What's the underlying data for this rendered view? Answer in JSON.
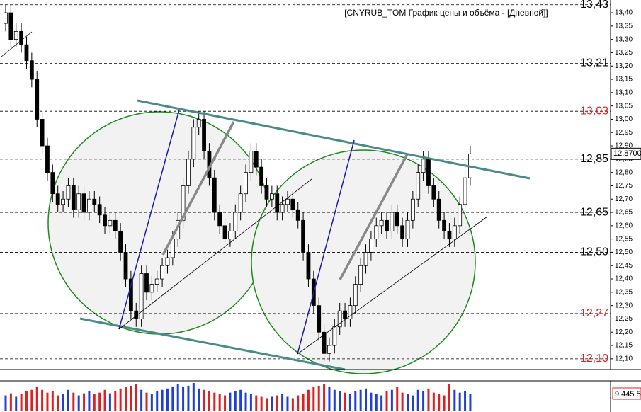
{
  "chart_data": {
    "type": "candlestick",
    "title": "[CNYRUB_TOM График цены и объёма - [Дневной]]",
    "up_color": "#ffffff",
    "down_color": "#000000",
    "volume_up_color": "#1f3fd8",
    "volume_down_color": "#e02020",
    "ylim": [
      12.065,
      13.448
    ],
    "yticks": [
      {
        "value": 13.4,
        "label": "13,40"
      },
      {
        "value": 13.35,
        "label": "13,35"
      },
      {
        "value": 13.3,
        "label": "13,30"
      },
      {
        "value": 13.25,
        "label": "13,25"
      },
      {
        "value": 13.2,
        "label": "13,20"
      },
      {
        "value": 13.15,
        "label": "13,15"
      },
      {
        "value": 13.1,
        "label": "13,10"
      },
      {
        "value": 13.05,
        "label": "13,05"
      },
      {
        "value": 13.0,
        "label": "13,00"
      },
      {
        "value": 12.95,
        "label": "12,95"
      },
      {
        "value": 12.9,
        "label": "12,90"
      },
      {
        "value": 12.85,
        "label": "12,85"
      },
      {
        "value": 12.8,
        "label": "12,80"
      },
      {
        "value": 12.75,
        "label": "12,75"
      },
      {
        "value": 12.7,
        "label": "12,70"
      },
      {
        "value": 12.65,
        "label": "12,65"
      },
      {
        "value": 12.6,
        "label": "12,60"
      },
      {
        "value": 12.55,
        "label": "12,55"
      },
      {
        "value": 12.5,
        "label": "12,50"
      },
      {
        "value": 12.45,
        "label": "12,45"
      },
      {
        "value": 12.4,
        "label": "12,40"
      },
      {
        "value": 12.35,
        "label": "12,35"
      },
      {
        "value": 12.3,
        "label": "12,30"
      },
      {
        "value": 12.25,
        "label": "12,25"
      },
      {
        "value": 12.2,
        "label": "12,20"
      },
      {
        "value": 12.15,
        "label": "12,15"
      },
      {
        "value": 12.1,
        "label": "12,10"
      }
    ],
    "levels": [
      {
        "value": 13.43,
        "label": "13,43",
        "color": "#000000"
      },
      {
        "value": 13.21,
        "label": "13,21",
        "color": "#000000"
      },
      {
        "value": 13.03,
        "label": "13,03",
        "color": "#e02020"
      },
      {
        "value": 12.85,
        "label": "12,85",
        "color": "#000000"
      },
      {
        "value": 12.65,
        "label": "12,65",
        "color": "#000000"
      },
      {
        "value": 12.5,
        "label": "12,50",
        "color": "#000000"
      },
      {
        "value": 12.27,
        "label": "12,27",
        "color": "#e02020"
      },
      {
        "value": 12.1,
        "label": "12,10",
        "color": "#e02020"
      }
    ],
    "last_price": {
      "value": 12.87,
      "label": "12,8700"
    },
    "open": [
      13.36,
      13.4,
      13.3,
      13.33,
      13.28,
      13.22,
      13.15,
      13.0,
      12.9,
      12.8,
      12.72,
      12.68,
      12.7,
      12.75,
      12.66,
      12.72,
      12.65,
      12.7,
      12.68,
      12.64,
      12.6,
      12.62,
      12.58,
      12.5,
      12.4,
      12.28,
      12.25,
      12.42,
      12.35,
      12.38,
      12.4,
      12.45,
      12.48,
      12.55,
      12.62,
      12.75,
      12.85,
      12.97,
      13.0,
      12.88,
      12.78,
      12.65,
      12.6,
      12.55,
      12.58,
      12.65,
      12.72,
      12.8,
      12.88,
      12.82,
      12.75,
      12.7,
      12.72,
      12.65,
      12.68,
      12.7,
      12.66,
      12.62,
      12.5,
      12.4,
      12.3,
      12.2,
      12.12,
      12.15,
      12.22,
      12.28,
      12.25,
      12.3,
      12.38,
      12.45,
      12.5,
      12.55,
      12.6,
      12.62,
      12.58,
      12.65,
      12.6,
      12.55,
      12.62,
      12.7,
      12.8,
      12.85,
      12.75,
      12.7,
      12.62,
      12.58,
      12.55,
      12.6,
      12.68,
      12.78
    ],
    "high": [
      13.43,
      13.43,
      13.36,
      13.36,
      13.31,
      13.25,
      13.18,
      13.03,
      12.93,
      12.83,
      12.75,
      12.73,
      12.78,
      12.78,
      12.75,
      12.75,
      12.73,
      12.73,
      12.71,
      12.67,
      12.65,
      12.65,
      12.61,
      12.53,
      12.43,
      12.31,
      12.45,
      12.45,
      12.41,
      12.43,
      12.48,
      12.51,
      12.58,
      12.65,
      12.78,
      12.88,
      13.0,
      13.03,
      13.03,
      12.91,
      12.81,
      12.68,
      12.63,
      12.61,
      12.68,
      12.75,
      12.83,
      12.91,
      12.91,
      12.85,
      12.78,
      12.75,
      12.75,
      12.71,
      12.73,
      12.73,
      12.69,
      12.65,
      12.53,
      12.43,
      12.33,
      12.23,
      12.18,
      12.25,
      12.31,
      12.31,
      12.33,
      12.41,
      12.48,
      12.53,
      12.58,
      12.63,
      12.65,
      12.65,
      12.68,
      12.68,
      12.63,
      12.65,
      12.73,
      12.83,
      12.88,
      12.88,
      12.78,
      12.73,
      12.65,
      12.61,
      12.63,
      12.71,
      12.81,
      12.9
    ],
    "low": [
      13.33,
      13.27,
      13.27,
      13.25,
      13.19,
      13.12,
      12.97,
      12.87,
      12.77,
      12.69,
      12.65,
      12.65,
      12.67,
      12.63,
      12.63,
      12.62,
      12.62,
      12.65,
      12.61,
      12.57,
      12.57,
      12.55,
      12.47,
      12.37,
      12.25,
      12.22,
      12.22,
      12.32,
      12.32,
      12.35,
      12.37,
      12.42,
      12.45,
      12.52,
      12.59,
      12.72,
      12.82,
      12.94,
      12.85,
      12.75,
      12.62,
      12.57,
      12.52,
      12.52,
      12.55,
      12.62,
      12.69,
      12.77,
      12.79,
      12.72,
      12.67,
      12.67,
      12.62,
      12.62,
      12.65,
      12.63,
      12.59,
      12.47,
      12.37,
      12.27,
      12.17,
      12.09,
      12.09,
      12.12,
      12.19,
      12.22,
      12.22,
      12.27,
      12.35,
      12.42,
      12.47,
      12.52,
      12.57,
      12.55,
      12.55,
      12.57,
      12.52,
      12.52,
      12.59,
      12.67,
      12.77,
      12.72,
      12.67,
      12.59,
      12.55,
      12.52,
      12.52,
      12.57,
      12.65,
      12.75
    ],
    "close": [
      13.4,
      13.3,
      13.33,
      13.28,
      13.22,
      13.15,
      13.0,
      12.9,
      12.8,
      12.72,
      12.68,
      12.7,
      12.75,
      12.66,
      12.72,
      12.65,
      12.7,
      12.68,
      12.64,
      12.6,
      12.62,
      12.58,
      12.5,
      12.4,
      12.28,
      12.25,
      12.42,
      12.35,
      12.38,
      12.4,
      12.45,
      12.48,
      12.55,
      12.62,
      12.75,
      12.85,
      12.97,
      13.0,
      12.88,
      12.78,
      12.65,
      12.6,
      12.55,
      12.58,
      12.65,
      12.72,
      12.8,
      12.88,
      12.82,
      12.75,
      12.7,
      12.72,
      12.65,
      12.68,
      12.7,
      12.66,
      12.62,
      12.5,
      12.4,
      12.3,
      12.2,
      12.12,
      12.15,
      12.22,
      12.28,
      12.25,
      12.3,
      12.38,
      12.45,
      12.5,
      12.55,
      12.6,
      12.62,
      12.58,
      12.65,
      12.6,
      12.55,
      12.62,
      12.7,
      12.8,
      12.85,
      12.75,
      12.7,
      12.62,
      12.58,
      12.55,
      12.6,
      12.68,
      12.78,
      12.87
    ],
    "volume_lim": [
      0,
      40
    ],
    "volume": [
      22,
      25,
      20,
      24,
      28,
      30,
      35,
      30,
      26,
      28,
      22,
      24,
      30,
      26,
      22,
      25,
      28,
      24,
      26,
      30,
      25,
      28,
      32,
      34,
      36,
      38,
      30,
      26,
      24,
      28,
      30,
      32,
      35,
      38,
      34,
      36,
      40,
      32,
      30,
      28,
      26,
      24,
      22,
      26,
      28,
      30,
      26,
      24,
      22,
      20,
      18,
      20,
      22,
      24,
      20,
      18,
      22,
      24,
      30,
      34,
      36,
      38,
      35,
      30,
      28,
      26,
      24,
      28,
      30,
      32,
      26,
      24,
      22,
      28,
      30,
      34,
      26,
      24,
      22,
      30,
      28,
      32,
      26,
      24,
      22,
      38,
      30,
      26,
      28,
      24
    ],
    "volume_label": "9 445 5"
  }
}
